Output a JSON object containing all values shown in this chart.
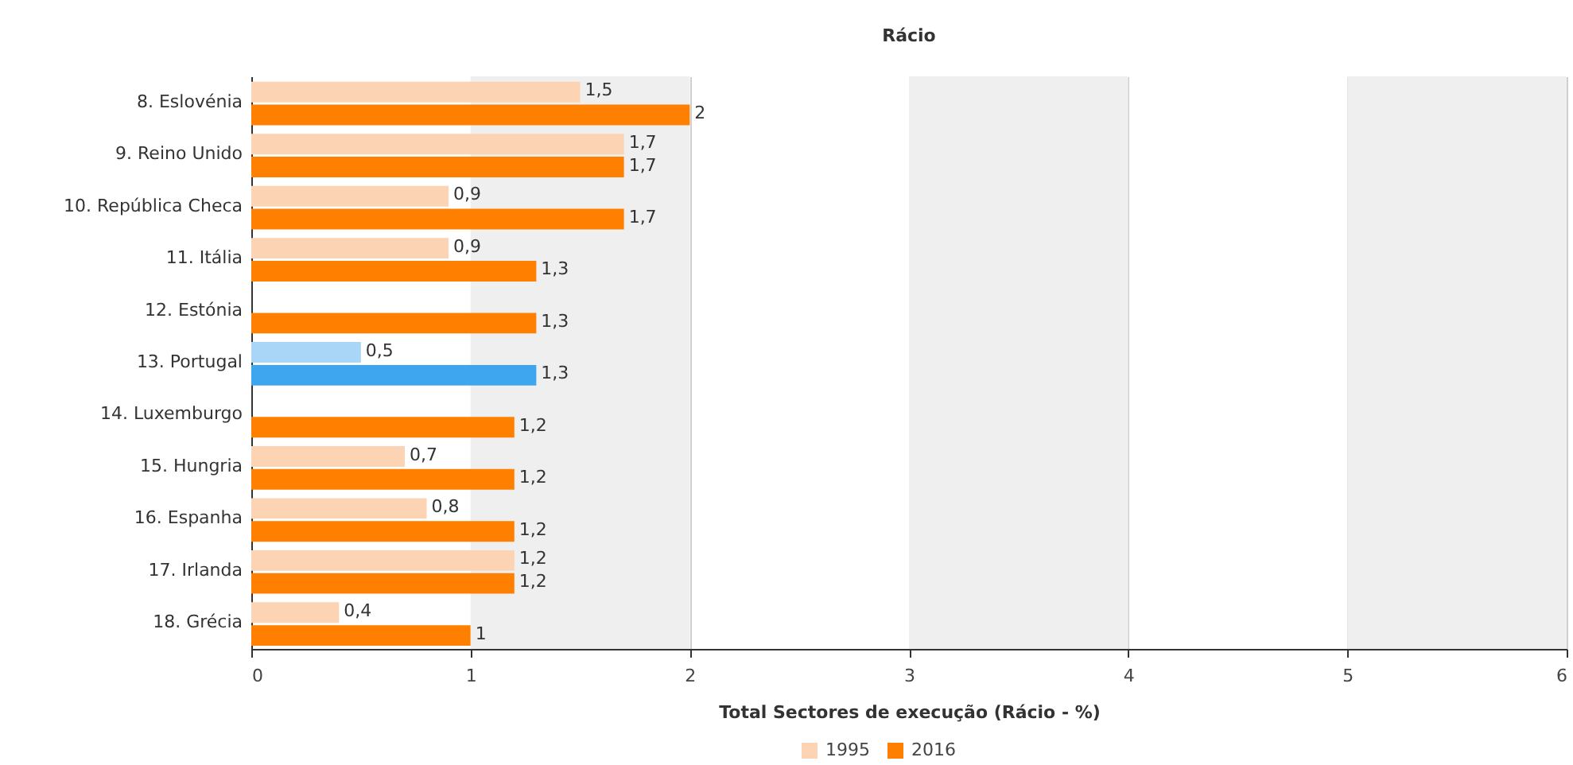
{
  "chart_data": {
    "type": "bar",
    "orientation": "horizontal",
    "title": "Rácio",
    "xlabel": "Total Sectores de execução (Rácio - %)",
    "categories": [
      "8. Eslovénia",
      "9. Reino Unido",
      "10. República Checa",
      "11. Itália",
      "12. Estónia",
      "13. Portugal",
      "14. Luxemburgo",
      "15. Hungria",
      "16. Espanha",
      "17. Irlanda",
      "18. Grécia"
    ],
    "series": [
      {
        "name": "1995",
        "color": "#fcd3b3",
        "colors": [
          "#fcd3b3",
          "#fcd3b3",
          "#fcd3b3",
          "#fcd3b3",
          null,
          "#a9d5f6",
          null,
          "#fcd3b3",
          "#fcd3b3",
          "#fcd3b3",
          "#fcd3b3"
        ],
        "values": [
          1.5,
          1.7,
          0.9,
          0.9,
          null,
          0.5,
          null,
          0.7,
          0.8,
          1.2,
          0.4
        ],
        "value_labels": [
          "1,5",
          "1,7",
          "0,9",
          "0,9",
          null,
          "0,5",
          null,
          "0,7",
          "0,8",
          "1,2",
          "0,4"
        ]
      },
      {
        "name": "2016",
        "color": "#ff8000",
        "colors": [
          "#ff8000",
          "#ff8000",
          "#ff8000",
          "#ff8000",
          "#ff8000",
          "#3ea6ef",
          "#ff8000",
          "#ff8000",
          "#ff8000",
          "#ff8000",
          "#ff8000"
        ],
        "values": [
          2,
          1.7,
          1.7,
          1.3,
          1.3,
          1.3,
          1.2,
          1.2,
          1.2,
          1.2,
          1
        ],
        "value_labels": [
          "2",
          "1,7",
          "1,7",
          "1,3",
          "1,3",
          "1,3",
          "1,2",
          "1,2",
          "1,2",
          "1,2",
          "1"
        ]
      }
    ],
    "xlim": [
      0,
      6
    ],
    "xticks": [
      0,
      1,
      2,
      3,
      4,
      5,
      6
    ],
    "grid": "x",
    "legend": "bottom",
    "bands": [
      {
        "axis": "x",
        "from": 1,
        "to": 2,
        "color": "#efefef"
      },
      {
        "axis": "x",
        "from": 3,
        "to": 4,
        "color": "#efefef"
      },
      {
        "axis": "x",
        "from": 5,
        "to": 6,
        "color": "#efefef"
      }
    ]
  }
}
